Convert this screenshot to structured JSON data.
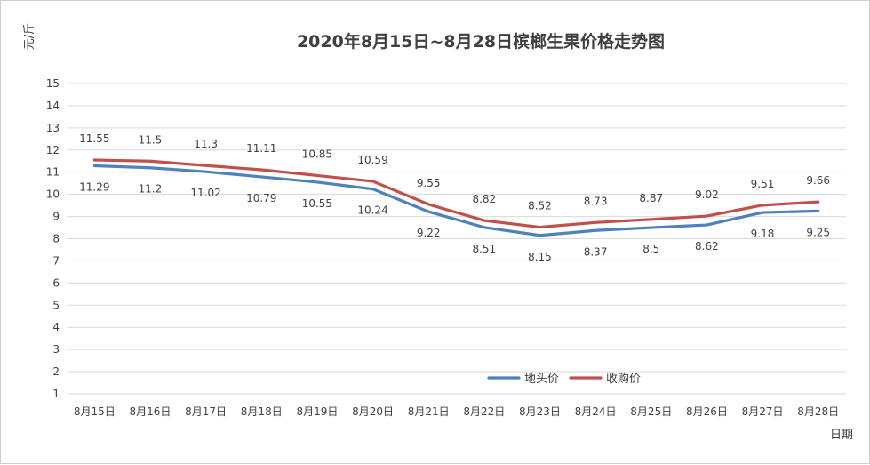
{
  "chart_data": {
    "type": "line",
    "title": "2020年8月15日~8月28日槟榔生果价格走势图",
    "ylabel": "元/斤",
    "xlabel": "日期",
    "categories": [
      "8月15日",
      "8月16日",
      "8月17日",
      "8月18日",
      "8月19日",
      "8月20日",
      "8月21日",
      "8月22日",
      "8月23日",
      "8月24日",
      "8月25日",
      "8月26日",
      "8月27日",
      "8月28日"
    ],
    "ylim": [
      1,
      15
    ],
    "yticks": [
      "1",
      "2",
      "3",
      "4",
      "5",
      "6",
      "7",
      "8",
      "9",
      "10",
      "11",
      "12",
      "13",
      "14",
      "15"
    ],
    "grid": true,
    "legend_position": "bottom-right",
    "series": [
      {
        "name": "地头价",
        "color": "#4f81bd",
        "values": [
          11.29,
          11.2,
          11.02,
          10.79,
          10.55,
          10.24,
          9.22,
          8.51,
          8.15,
          8.37,
          8.5,
          8.62,
          9.18,
          9.25
        ],
        "labels": [
          "11.29",
          "11.2",
          "11.02",
          "10.79",
          "10.55",
          "10.24",
          "9.22",
          "8.51",
          "8.15",
          "8.37",
          "8.5",
          "8.62",
          "9.18",
          "9.25"
        ]
      },
      {
        "name": "收购价",
        "color": "#c0504d",
        "values": [
          11.55,
          11.5,
          11.3,
          11.11,
          10.85,
          10.59,
          9.55,
          8.82,
          8.52,
          8.73,
          8.87,
          9.02,
          9.51,
          9.66
        ],
        "labels": [
          "11.55",
          "11.5",
          "11.3",
          "11.11",
          "10.85",
          "10.59",
          "9.55",
          "8.82",
          "8.52",
          "8.73",
          "8.87",
          "9.02",
          "9.51",
          "9.66"
        ]
      }
    ]
  }
}
